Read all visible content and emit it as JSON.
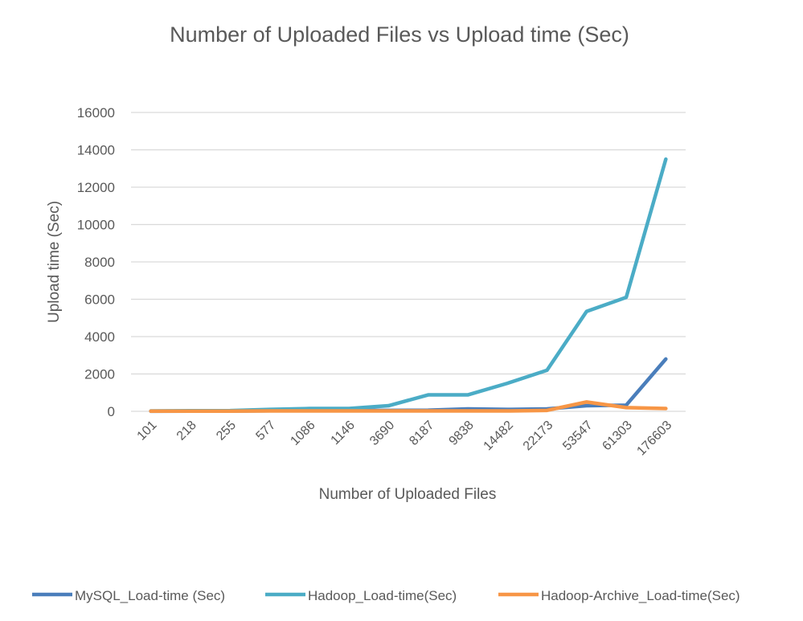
{
  "chart_data": {
    "type": "line",
    "title": "Number of Uploaded Files vs Upload time (Sec)",
    "xlabel": "Number of Uploaded Files",
    "ylabel": "Upload time (Sec)",
    "ylim": [
      0,
      16000
    ],
    "yticks": [
      0,
      2000,
      4000,
      6000,
      8000,
      10000,
      12000,
      14000,
      16000
    ],
    "grid": true,
    "legend_position": "bottom",
    "categories": [
      "101",
      "218",
      "255",
      "577",
      "1086",
      "1146",
      "3690",
      "8187",
      "9838",
      "14482",
      "22173",
      "53547",
      "61303",
      "176603"
    ],
    "series": [
      {
        "name": "MySQL_Load-time  (Sec)",
        "color": "#4a7ebb",
        "values": [
          5,
          10,
          15,
          30,
          50,
          50,
          50,
          60,
          130,
          100,
          130,
          300,
          330,
          2800
        ]
      },
      {
        "name": "Hadoop_Load-time(Sec)",
        "color": "#4bacc6",
        "values": [
          20,
          30,
          40,
          100,
          150,
          150,
          300,
          880,
          880,
          1500,
          2200,
          5350,
          6100,
          13500
        ]
      },
      {
        "name": "Hadoop-Archive_Load-time(Sec)",
        "color": "#f79646",
        "values": [
          10,
          10,
          10,
          20,
          20,
          20,
          20,
          20,
          20,
          20,
          50,
          500,
          200,
          150
        ]
      }
    ]
  }
}
